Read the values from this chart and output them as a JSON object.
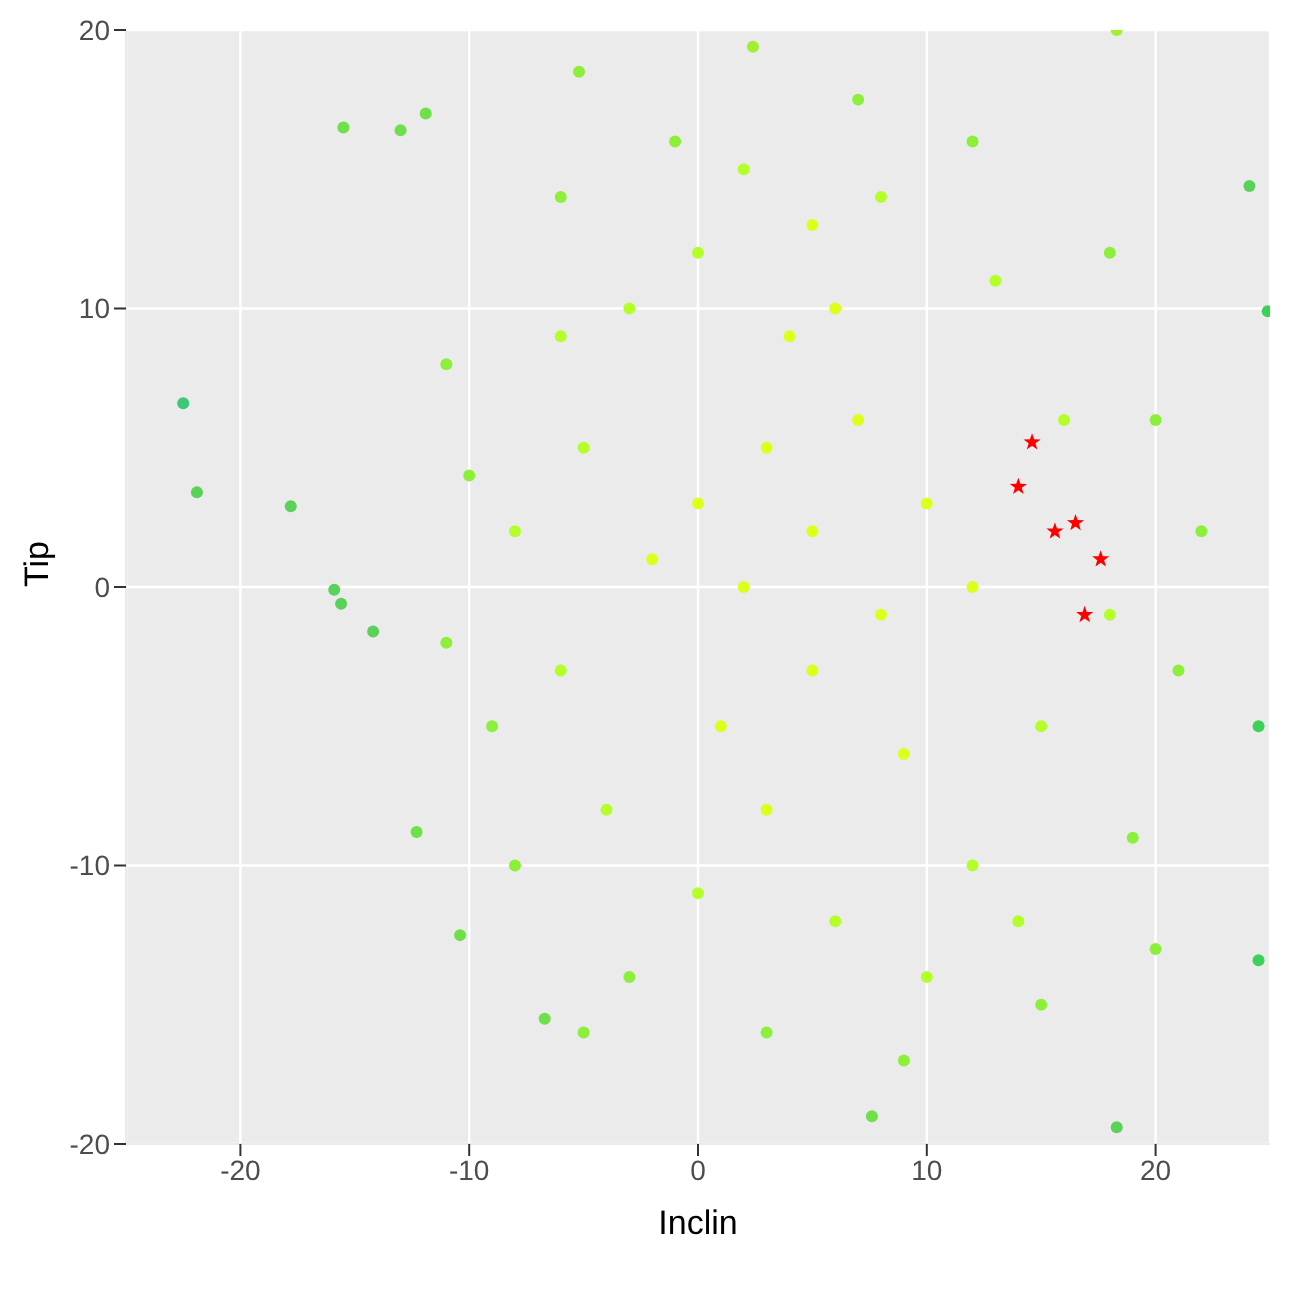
{
  "chart_data": {
    "type": "scatter",
    "xlabel": "Inclin",
    "ylabel": "Tip",
    "xlim": [
      -25,
      25
    ],
    "ylim": [
      -20,
      20
    ],
    "xticks": [
      -20,
      -10,
      0,
      10,
      20
    ],
    "yticks": [
      -20,
      -10,
      0,
      10,
      20
    ],
    "grid": true,
    "legend": false,
    "marker": "circle",
    "series": [
      {
        "color": "#c4ff22",
        "x": [
          5,
          3,
          7,
          2,
          8,
          5,
          0,
          10,
          4,
          6,
          1,
          9,
          -2,
          12,
          5,
          3,
          -5,
          -6,
          -4,
          0,
          6,
          12,
          15,
          16,
          13,
          8,
          0,
          -3,
          -8,
          18,
          10,
          2,
          -6,
          14,
          -10,
          -9,
          -8,
          -3,
          3,
          9,
          15,
          19,
          21,
          20,
          18,
          12,
          7,
          -1,
          -6,
          -11,
          -11,
          22,
          20,
          -5,
          -22.5,
          -21.9,
          -17.8,
          -15.9,
          -15.6,
          -14.2,
          -15.5,
          -11.9,
          -13,
          -10.4,
          -6.7,
          2.4,
          18.3,
          24.9,
          24.5,
          24.5,
          18.3,
          7.6,
          -5.2,
          -12.3,
          24.1
        ],
        "values": [
          2,
          5,
          6,
          0,
          -1,
          -3,
          3,
          3,
          9,
          10,
          -5,
          -6,
          1,
          0,
          13,
          -8,
          5,
          -3,
          -8,
          -11,
          -12,
          -10,
          -5,
          6,
          11,
          14,
          12,
          10,
          2,
          -1,
          -14,
          15,
          9,
          -12,
          4,
          -5,
          -10,
          -14,
          -16,
          -17,
          -15,
          -9,
          -3,
          6,
          12,
          16,
          17.5,
          16,
          14,
          8,
          -2,
          2,
          -13,
          -16,
          6.6,
          3.4,
          2.9,
          -0.1,
          -0.6,
          -1.6,
          16.5,
          17,
          16.4,
          -12.5,
          -15.5,
          19.4,
          20,
          9.9,
          -5,
          -13.4,
          -19.4,
          -19,
          18.5,
          -8.8,
          14.4
        ],
        "colors": [
          "#ddff1a",
          "#ddff1a",
          "#ddff1a",
          "#ddff1a",
          "#ddff1a",
          "#ddff1a",
          "#ddff1a",
          "#ddff1a",
          "#ddff1a",
          "#ddff1a",
          "#ddff1a",
          "#ddff1a",
          "#ddff1a",
          "#ddff1a",
          "#ddff1a",
          "#ddff1a",
          "#b4ff2a",
          "#b4ff2a",
          "#b4ff2a",
          "#b4ff2a",
          "#b4ff2a",
          "#b4ff2a",
          "#b4ff2a",
          "#b4ff2a",
          "#b4ff2a",
          "#b4ff2a",
          "#b4ff2a",
          "#b4ff2a",
          "#b4ff2a",
          "#b4ff2a",
          "#b4ff2a",
          "#b4ff2a",
          "#b4ff2a",
          "#b4ff2a",
          "#8cf03a",
          "#8cf03a",
          "#8cf03a",
          "#8cf03a",
          "#8cf03a",
          "#8cf03a",
          "#8cf03a",
          "#8cf03a",
          "#8cf03a",
          "#8cf03a",
          "#8cf03a",
          "#8cf03a",
          "#8cf03a",
          "#8cf03a",
          "#8cf03a",
          "#8cf03a",
          "#8cf03a",
          "#8cf03a",
          "#8cf03a",
          "#8cf03a",
          "#3cc878",
          "#5ad25a",
          "#5ad25a",
          "#5ad25a",
          "#5ad25a",
          "#5ad25a",
          "#6ee04a",
          "#6ee04a",
          "#6ee04a",
          "#6ee04a",
          "#6ee04a",
          "#a0f030",
          "#a0f030",
          "#3cd25a",
          "#3cd25a",
          "#3cd25a",
          "#5ad25a",
          "#6ee04a",
          "#8cf03a",
          "#6ee04a",
          "#5ad25a"
        ]
      },
      {
        "color": "#ff0000",
        "marker": "star",
        "x": [
          14.6,
          14,
          15.6,
          16.5,
          17.6,
          16.9
        ],
        "values": [
          5.2,
          3.6,
          2,
          2.3,
          1,
          -1
        ]
      }
    ]
  }
}
